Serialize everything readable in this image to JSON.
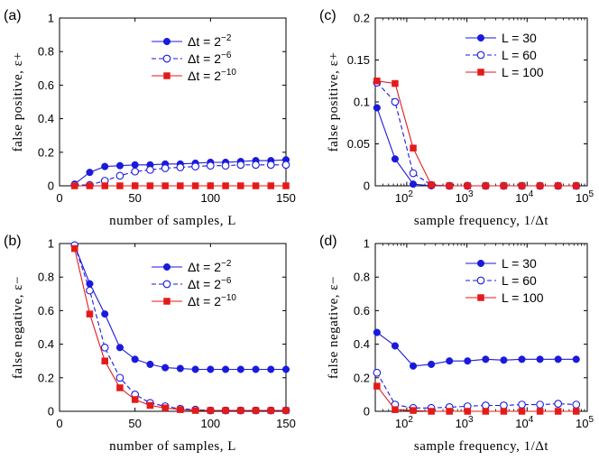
{
  "colors": {
    "blue": "#1a1adc",
    "red": "#e41a1a",
    "axis": "#000000"
  },
  "chart_data": [
    {
      "type": "line",
      "panel_label": "(a)",
      "xlabel": "number of samples, L",
      "ylabel": "false positive, ε+",
      "xscale": "linear",
      "xlim": [
        0,
        150
      ],
      "ylim": [
        0,
        1
      ],
      "xticks": [
        0,
        50,
        100,
        150
      ],
      "xtick_labels": [
        "0",
        "50",
        "100",
        "150"
      ],
      "yticks": [
        0,
        0.2,
        0.4,
        0.6,
        0.8,
        1
      ],
      "ytick_labels": [
        "0",
        "0.2",
        "0.4",
        "0.6",
        "0.8",
        "1"
      ],
      "legend_position": "top-right",
      "series": [
        {
          "name": "Δt = 2^-2",
          "legend_base": "Δt = 2",
          "legend_exp": "−2",
          "color": "blue",
          "marker": "filled-circle",
          "dash": "solid",
          "x": [
            10,
            20,
            30,
            40,
            50,
            60,
            70,
            80,
            90,
            100,
            110,
            120,
            130,
            140,
            150
          ],
          "y": [
            0.01,
            0.08,
            0.115,
            0.12,
            0.125,
            0.125,
            0.13,
            0.13,
            0.135,
            0.14,
            0.14,
            0.145,
            0.15,
            0.15,
            0.155
          ]
        },
        {
          "name": "Δt = 2^-6",
          "legend_base": "Δt = 2",
          "legend_exp": "−6",
          "color": "blue",
          "marker": "open-circle",
          "dash": "dashed",
          "x": [
            10,
            20,
            30,
            40,
            50,
            60,
            70,
            80,
            90,
            100,
            110,
            120,
            130,
            140,
            150
          ],
          "y": [
            0.005,
            0.005,
            0.03,
            0.06,
            0.085,
            0.095,
            0.105,
            0.11,
            0.115,
            0.12,
            0.12,
            0.125,
            0.125,
            0.125,
            0.125
          ]
        },
        {
          "name": "Δt = 2^-10",
          "legend_base": "Δt = 2",
          "legend_exp": "−10",
          "color": "red",
          "marker": "filled-square",
          "dash": "solid",
          "x": [
            10,
            20,
            30,
            40,
            50,
            60,
            70,
            80,
            90,
            100,
            110,
            120,
            130,
            140,
            150
          ],
          "y": [
            0,
            0,
            0,
            0,
            0,
            0,
            0,
            0,
            0,
            0,
            0,
            0,
            0,
            0,
            0
          ]
        }
      ]
    },
    {
      "type": "line",
      "panel_label": "(c)",
      "xlabel": "sample frequency, 1/Δt",
      "ylabel": "false positive, ε+",
      "xscale": "log",
      "xlim": [
        30,
        100000
      ],
      "ylim": [
        0,
        0.2
      ],
      "xticks": [
        100,
        1000,
        10000,
        100000
      ],
      "xtick_exponents": [
        "2",
        "3",
        "4",
        "5"
      ],
      "yticks": [
        0,
        0.05,
        0.1,
        0.15,
        0.2
      ],
      "ytick_labels": [
        "0",
        "0.05",
        "0.1",
        "0.15",
        "0.2"
      ],
      "legend_position": "top-right",
      "series": [
        {
          "name": "L = 30",
          "color": "blue",
          "marker": "filled-circle",
          "dash": "solid",
          "x": [
            32,
            64,
            128,
            256,
            512,
            1024,
            2048,
            4096,
            8192,
            16384,
            32768,
            65536
          ],
          "y": [
            0.093,
            0.032,
            0.002,
            0,
            0,
            0,
            0,
            0,
            0,
            0,
            0,
            0
          ]
        },
        {
          "name": "L = 60",
          "color": "blue",
          "marker": "open-circle",
          "dash": "dashed",
          "x": [
            32,
            64,
            128,
            256,
            512,
            1024,
            2048,
            4096,
            8192,
            16384,
            32768,
            65536
          ],
          "y": [
            0.123,
            0.1,
            0.015,
            0.001,
            0,
            0,
            0,
            0,
            0,
            0,
            0,
            0
          ]
        },
        {
          "name": "L = 100",
          "color": "red",
          "marker": "filled-square",
          "dash": "solid",
          "x": [
            32,
            64,
            128,
            256,
            512,
            1024,
            2048,
            4096,
            8192,
            16384,
            32768,
            65536
          ],
          "y": [
            0.125,
            0.122,
            0.045,
            0.001,
            0,
            0,
            0,
            0,
            0,
            0,
            0,
            0
          ]
        }
      ]
    },
    {
      "type": "line",
      "panel_label": "(b)",
      "xlabel": "number of samples, L",
      "ylabel": "false negative, ε−",
      "xscale": "linear",
      "xlim": [
        0,
        150
      ],
      "ylim": [
        0,
        1
      ],
      "xticks": [
        0,
        50,
        100,
        150
      ],
      "xtick_labels": [
        "0",
        "50",
        "100",
        "150"
      ],
      "yticks": [
        0,
        0.2,
        0.4,
        0.6,
        0.8,
        1
      ],
      "ytick_labels": [
        "0",
        "0.2",
        "0.4",
        "0.6",
        "0.8",
        "1"
      ],
      "legend_position": "top-right",
      "series": [
        {
          "name": "Δt = 2^-2",
          "legend_base": "Δt = 2",
          "legend_exp": "−2",
          "color": "blue",
          "marker": "filled-circle",
          "dash": "solid",
          "x": [
            10,
            20,
            30,
            40,
            50,
            60,
            70,
            80,
            90,
            100,
            110,
            120,
            130,
            140,
            150
          ],
          "y": [
            0.99,
            0.76,
            0.58,
            0.38,
            0.31,
            0.28,
            0.26,
            0.255,
            0.25,
            0.25,
            0.25,
            0.25,
            0.25,
            0.25,
            0.25
          ]
        },
        {
          "name": "Δt = 2^-6",
          "legend_base": "Δt = 2",
          "legend_exp": "−6",
          "color": "blue",
          "marker": "open-circle",
          "dash": "dashed",
          "x": [
            10,
            20,
            30,
            40,
            50,
            60,
            70,
            80,
            90,
            100,
            110,
            120,
            130,
            140,
            150
          ],
          "y": [
            0.99,
            0.72,
            0.38,
            0.2,
            0.1,
            0.05,
            0.03,
            0.015,
            0.01,
            0.005,
            0.005,
            0.005,
            0.005,
            0.005,
            0.005
          ]
        },
        {
          "name": "Δt = 2^-10",
          "legend_base": "Δt = 2",
          "legend_exp": "−10",
          "color": "red",
          "marker": "filled-square",
          "dash": "solid",
          "x": [
            10,
            20,
            30,
            40,
            50,
            60,
            70,
            80,
            90,
            100,
            110,
            120,
            130,
            140,
            150
          ],
          "y": [
            0.97,
            0.58,
            0.3,
            0.14,
            0.07,
            0.035,
            0.02,
            0.01,
            0.005,
            0.005,
            0.005,
            0.005,
            0.005,
            0.005,
            0.005
          ]
        }
      ]
    },
    {
      "type": "line",
      "panel_label": "(d)",
      "xlabel": "sample frequency, 1/Δt",
      "ylabel": "false negative, ε−",
      "xscale": "log",
      "xlim": [
        30,
        100000
      ],
      "ylim": [
        0,
        1
      ],
      "xticks": [
        100,
        1000,
        10000,
        100000
      ],
      "xtick_exponents": [
        "2",
        "3",
        "4",
        "5"
      ],
      "yticks": [
        0,
        0.2,
        0.4,
        0.6,
        0.8,
        1
      ],
      "ytick_labels": [
        "0",
        "0.2",
        "0.4",
        "0.6",
        "0.8",
        "1"
      ],
      "legend_position": "top-right",
      "series": [
        {
          "name": "L = 30",
          "color": "blue",
          "marker": "filled-circle",
          "dash": "solid",
          "x": [
            32,
            64,
            128,
            256,
            512,
            1024,
            2048,
            4096,
            8192,
            16384,
            32768,
            65536
          ],
          "y": [
            0.47,
            0.39,
            0.27,
            0.28,
            0.3,
            0.3,
            0.31,
            0.305,
            0.31,
            0.31,
            0.31,
            0.31
          ]
        },
        {
          "name": "L = 60",
          "color": "blue",
          "marker": "open-circle",
          "dash": "dashed",
          "x": [
            32,
            64,
            128,
            256,
            512,
            1024,
            2048,
            4096,
            8192,
            16384,
            32768,
            65536
          ],
          "y": [
            0.23,
            0.04,
            0.02,
            0.02,
            0.025,
            0.03,
            0.035,
            0.035,
            0.04,
            0.04,
            0.045,
            0.04
          ]
        },
        {
          "name": "L = 100",
          "color": "red",
          "marker": "filled-square",
          "dash": "solid",
          "x": [
            32,
            64,
            128,
            256,
            512,
            1024,
            2048,
            4096,
            8192,
            16384,
            32768,
            65536
          ],
          "y": [
            0.15,
            0.01,
            0.005,
            0,
            0,
            0,
            0,
            0,
            0,
            0,
            0,
            0
          ]
        }
      ]
    }
  ]
}
